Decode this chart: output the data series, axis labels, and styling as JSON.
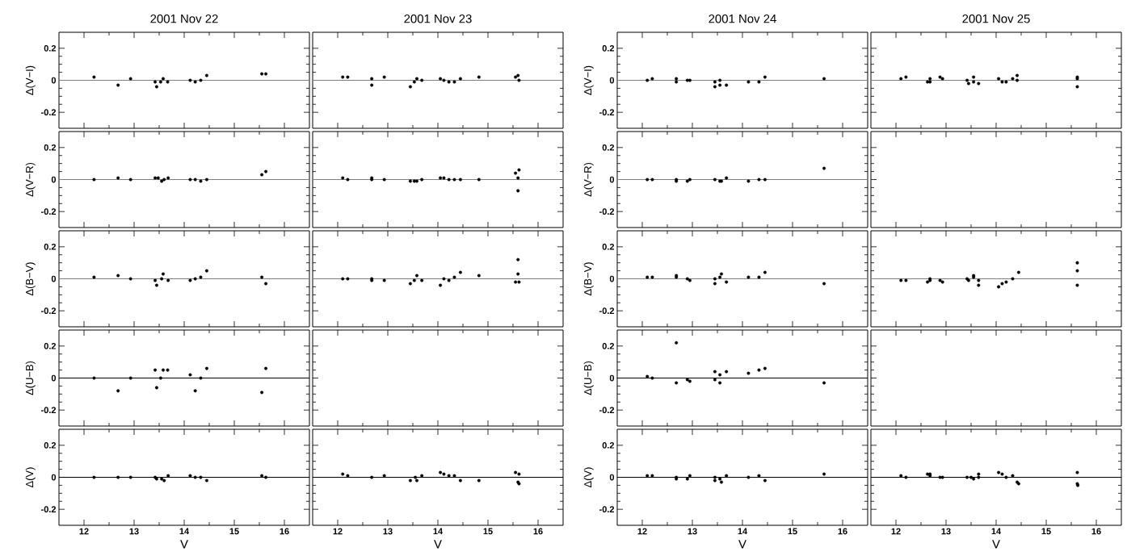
{
  "chart_data": [
    {
      "type": "scatter",
      "title": "2001 Nov 22",
      "ylabel": "Δ(V−I)",
      "x": [
        12.2,
        12.68,
        12.93,
        13.42,
        13.45,
        13.53,
        13.58,
        13.67,
        14.12,
        14.22,
        14.33,
        14.45,
        15.55,
        15.63
      ],
      "values": [
        0.02,
        -0.03,
        0.01,
        -0.01,
        -0.04,
        -0.01,
        0.01,
        -0.01,
        0,
        -0.01,
        0,
        0.03,
        0.04,
        0.04
      ],
      "color": "#000000",
      "marker": "circle",
      "xlim": [
        11.5,
        16.5
      ],
      "ylim": [
        -0.3,
        0.3
      ],
      "xticks": [
        12,
        13,
        14,
        15,
        16
      ],
      "yticks": [
        -0.2,
        0,
        0.2
      ],
      "ref_lines": [
        {
          "axis": "y",
          "value": 0,
          "color": "#808080"
        }
      ],
      "tick_labels": "y"
    },
    {
      "type": "scatter",
      "title": "2001 Nov 23",
      "x": [
        12.1,
        12.2,
        12.68,
        12.68,
        12.93,
        13.45,
        13.53,
        13.58,
        13.68,
        14.05,
        14.12,
        14.22,
        14.33,
        14.45,
        14.82,
        15.55,
        15.6,
        15.62
      ],
      "values": [
        0.02,
        0.02,
        0.01,
        -0.03,
        0.02,
        -0.04,
        -0.01,
        0.01,
        0,
        0.01,
        0,
        -0.01,
        -0.01,
        0.01,
        0.02,
        0.02,
        0.03,
        0
      ],
      "color": "#000000",
      "marker": "circle",
      "xlim": [
        11.5,
        16.5
      ],
      "ylim": [
        -0.3,
        0.3
      ],
      "xticks": [
        12,
        13,
        14,
        15,
        16
      ],
      "yticks": [
        -0.2,
        0,
        0.2
      ],
      "ref_lines": [
        {
          "axis": "y",
          "value": 0,
          "color": "#808080"
        }
      ],
      "tick_labels": false
    },
    {
      "type": "scatter",
      "title": "2001 Nov 24",
      "ylabel": "Δ(V−I)",
      "x": [
        12.1,
        12.2,
        12.68,
        12.68,
        12.9,
        12.95,
        13.45,
        13.45,
        13.55,
        13.55,
        13.68,
        14.12,
        14.33,
        14.45,
        15.63
      ],
      "values": [
        0,
        0.01,
        0.01,
        -0.01,
        0,
        0,
        -0.01,
        -0.04,
        0,
        -0.03,
        -0.03,
        -0.01,
        -0.01,
        0.02,
        0.01
      ],
      "color": "#000000",
      "marker": "circle",
      "xlim": [
        11.5,
        16.5
      ],
      "ylim": [
        -0.3,
        0.3
      ],
      "xticks": [
        12,
        13,
        14,
        15,
        16
      ],
      "yticks": [
        -0.2,
        0,
        0.2
      ],
      "ref_lines": [
        {
          "axis": "y",
          "value": 0,
          "color": "#808080"
        }
      ],
      "tick_labels": "y"
    },
    {
      "type": "scatter",
      "title": "2001 Nov 25",
      "x": [
        12.1,
        12.2,
        12.63,
        12.68,
        12.68,
        12.88,
        12.93,
        13.42,
        13.45,
        13.55,
        13.55,
        13.65,
        14.05,
        14.12,
        14.2,
        14.33,
        14.42,
        14.42,
        15.62,
        15.62,
        15.62
      ],
      "values": [
        0.01,
        0.02,
        -0.01,
        0.01,
        -0.01,
        0.02,
        0.01,
        0,
        -0.02,
        0.02,
        -0.01,
        -0.02,
        0.01,
        -0.01,
        -0.01,
        0.01,
        0.03,
        0,
        0.02,
        0.01,
        -0.04
      ],
      "color": "#000000",
      "marker": "circle",
      "xlim": [
        11.5,
        16.5
      ],
      "ylim": [
        -0.3,
        0.3
      ],
      "xticks": [
        12,
        13,
        14,
        15,
        16
      ],
      "yticks": [
        -0.2,
        0,
        0.2
      ],
      "ref_lines": [
        {
          "axis": "y",
          "value": 0,
          "color": "#808080"
        }
      ],
      "tick_labels": false
    },
    {
      "type": "scatter",
      "ylabel": "Δ(V−R)",
      "x": [
        12.2,
        12.68,
        12.93,
        13.42,
        13.48,
        13.55,
        13.6,
        13.68,
        14.12,
        14.22,
        14.33,
        14.45,
        15.55,
        15.63
      ],
      "values": [
        0,
        0.01,
        0,
        0.01,
        0.01,
        -0.01,
        0,
        0.01,
        0,
        0,
        -0.01,
        0,
        0.03,
        0.05
      ],
      "color": "#000000",
      "marker": "circle",
      "xlim": [
        11.5,
        16.5
      ],
      "ylim": [
        -0.3,
        0.3
      ],
      "xticks": [
        12,
        13,
        14,
        15,
        16
      ],
      "yticks": [
        -0.2,
        0,
        0.2
      ],
      "ref_lines": [
        {
          "axis": "y",
          "value": 0,
          "color": "#808080"
        }
      ],
      "tick_labels": "y"
    },
    {
      "type": "scatter",
      "x": [
        12.1,
        12.2,
        12.68,
        12.68,
        12.93,
        13.45,
        13.53,
        13.58,
        13.68,
        14.05,
        14.12,
        14.22,
        14.33,
        14.45,
        14.82,
        15.55,
        15.62,
        15.6,
        15.6
      ],
      "values": [
        0.01,
        0,
        0,
        0.01,
        0,
        -0.01,
        -0.01,
        -0.01,
        0,
        0.01,
        0.01,
        0,
        0,
        0,
        0,
        0.04,
        0.06,
        0.01,
        -0.07
      ],
      "color": "#000000",
      "marker": "circle",
      "xlim": [
        11.5,
        16.5
      ],
      "ylim": [
        -0.3,
        0.3
      ],
      "xticks": [
        12,
        13,
        14,
        15,
        16
      ],
      "yticks": [
        -0.2,
        0,
        0.2
      ],
      "ref_lines": [
        {
          "axis": "y",
          "value": 0,
          "color": "#808080"
        }
      ],
      "tick_labels": false
    },
    {
      "type": "scatter",
      "ylabel": "Δ(V−R)",
      "x": [
        12.1,
        12.2,
        12.68,
        12.68,
        12.9,
        12.95,
        13.45,
        13.55,
        13.58,
        13.68,
        14.12,
        14.33,
        14.45,
        15.63
      ],
      "values": [
        0,
        0,
        -0.01,
        0,
        -0.01,
        0,
        0,
        -0.01,
        -0.01,
        0.01,
        -0.01,
        0,
        0,
        0.07
      ],
      "color": "#000000",
      "marker": "circle",
      "xlim": [
        11.5,
        16.5
      ],
      "ylim": [
        -0.3,
        0.3
      ],
      "xticks": [
        12,
        13,
        14,
        15,
        16
      ],
      "yticks": [
        -0.2,
        0,
        0.2
      ],
      "ref_lines": [
        {
          "axis": "y",
          "value": 0,
          "color": "#808080"
        }
      ],
      "tick_labels": "y"
    },
    {
      "type": "scatter",
      "ylabel": "Δ(B−V)",
      "x": [
        12.2,
        12.68,
        12.93,
        13.42,
        13.45,
        13.55,
        13.58,
        13.68,
        14.12,
        14.22,
        14.33,
        14.45,
        15.55,
        15.63
      ],
      "values": [
        0.01,
        0.02,
        0,
        -0.01,
        -0.04,
        0,
        0.03,
        -0.01,
        -0.01,
        0,
        0.01,
        0.05,
        0.01,
        -0.03
      ],
      "color": "#000000",
      "marker": "circle",
      "xlim": [
        11.5,
        16.5
      ],
      "ylim": [
        -0.3,
        0.3
      ],
      "xticks": [
        12,
        13,
        14,
        15,
        16
      ],
      "yticks": [
        -0.2,
        0,
        0.2
      ],
      "ref_lines": [
        {
          "axis": "y",
          "value": 0,
          "color": "#808080"
        }
      ],
      "tick_labels": "y"
    },
    {
      "type": "scatter",
      "x": [
        12.1,
        12.2,
        12.68,
        12.68,
        12.93,
        13.45,
        13.53,
        13.58,
        13.68,
        14.05,
        14.12,
        14.22,
        14.33,
        14.45,
        14.82,
        15.55,
        15.62,
        15.6,
        15.6
      ],
      "values": [
        0,
        0,
        0,
        -0.01,
        -0.01,
        -0.03,
        -0.01,
        0.02,
        -0.01,
        -0.04,
        0,
        -0.01,
        0.01,
        0.04,
        0.02,
        -0.02,
        -0.02,
        0.03,
        0.12
      ],
      "color": "#000000",
      "marker": "circle",
      "xlim": [
        11.5,
        16.5
      ],
      "ylim": [
        -0.3,
        0.3
      ],
      "xticks": [
        12,
        13,
        14,
        15,
        16
      ],
      "yticks": [
        -0.2,
        0,
        0.2
      ],
      "ref_lines": [
        {
          "axis": "y",
          "value": 0,
          "color": "#808080"
        }
      ],
      "tick_labels": false
    },
    {
      "type": "scatter",
      "ylabel": "Δ(B−V)",
      "x": [
        12.1,
        12.2,
        12.68,
        12.68,
        12.9,
        12.95,
        13.45,
        13.45,
        13.55,
        13.58,
        13.68,
        14.12,
        14.33,
        14.45,
        15.63
      ],
      "values": [
        0.01,
        0.01,
        0.02,
        0.01,
        0,
        -0.01,
        -0.03,
        0,
        0.01,
        0.03,
        -0.02,
        0.01,
        0.01,
        0.04,
        -0.03
      ],
      "color": "#000000",
      "marker": "circle",
      "xlim": [
        11.5,
        16.5
      ],
      "ylim": [
        -0.3,
        0.3
      ],
      "xticks": [
        12,
        13,
        14,
        15,
        16
      ],
      "yticks": [
        -0.2,
        0,
        0.2
      ],
      "ref_lines": [
        {
          "axis": "y",
          "value": 0,
          "color": "#808080"
        }
      ],
      "tick_labels": "y"
    },
    {
      "type": "scatter",
      "x": [
        12.1,
        12.2,
        12.63,
        12.68,
        12.68,
        12.88,
        12.93,
        13.42,
        13.45,
        13.55,
        13.55,
        13.65,
        13.65,
        14.05,
        14.12,
        14.2,
        14.33,
        14.45,
        15.62,
        15.62,
        15.62
      ],
      "values": [
        -0.01,
        -0.01,
        -0.02,
        0,
        -0.01,
        -0.01,
        -0.02,
        0,
        -0.01,
        0.02,
        0.01,
        -0.01,
        -0.04,
        -0.05,
        -0.03,
        -0.02,
        0,
        0.04,
        0.1,
        0.05,
        -0.04
      ],
      "color": "#000000",
      "marker": "circle",
      "xlim": [
        11.5,
        16.5
      ],
      "ylim": [
        -0.3,
        0.3
      ],
      "xticks": [
        12,
        13,
        14,
        15,
        16
      ],
      "yticks": [
        -0.2,
        0,
        0.2
      ],
      "ref_lines": [
        {
          "axis": "y",
          "value": 0,
          "color": "#808080"
        }
      ],
      "tick_labels": false
    },
    {
      "type": "scatter",
      "ylabel": "Δ(U−B)",
      "x": [
        12.2,
        12.68,
        12.93,
        13.42,
        13.45,
        13.53,
        13.58,
        13.67,
        14.12,
        14.22,
        14.33,
        14.45,
        15.55,
        15.63
      ],
      "values": [
        0,
        -0.08,
        0,
        0.05,
        -0.06,
        0,
        0.05,
        0.05,
        0.02,
        -0.08,
        0,
        0.06,
        -0.09,
        0.06
      ],
      "color": "#000000",
      "marker": "circle",
      "xlim": [
        11.5,
        16.5
      ],
      "ylim": [
        -0.3,
        0.3
      ],
      "xticks": [
        12,
        13,
        14,
        15,
        16
      ],
      "yticks": [
        -0.2,
        0,
        0.2
      ],
      "ref_lines": [
        {
          "axis": "y",
          "value": 0,
          "color": "#000000"
        }
      ],
      "tick_labels": "y"
    },
    {
      "type": "scatter",
      "ylabel": "Δ(U−B)",
      "x": [
        12.1,
        12.2,
        12.68,
        12.68,
        12.9,
        12.95,
        13.45,
        13.45,
        13.55,
        13.55,
        13.68,
        14.12,
        14.33,
        14.45,
        15.63
      ],
      "values": [
        0.01,
        0,
        0.22,
        -0.03,
        -0.01,
        -0.02,
        0.04,
        -0.01,
        0.02,
        -0.03,
        0.04,
        0.03,
        0.05,
        0.06,
        -0.03
      ],
      "color": "#000000",
      "marker": "circle",
      "xlim": [
        11.5,
        16.5
      ],
      "ylim": [
        -0.3,
        0.3
      ],
      "xticks": [
        12,
        13,
        14,
        15,
        16
      ],
      "yticks": [
        -0.2,
        0,
        0.2
      ],
      "ref_lines": [
        {
          "axis": "y",
          "value": 0,
          "color": "#000000"
        }
      ],
      "tick_labels": "y"
    },
    {
      "type": "scatter",
      "ylabel": "Δ(V)",
      "xlabel": "V",
      "x": [
        12.2,
        12.68,
        12.93,
        13.42,
        13.45,
        13.55,
        13.6,
        13.68,
        14.12,
        14.22,
        14.33,
        14.45,
        15.55,
        15.63
      ],
      "values": [
        0,
        0,
        0,
        0,
        -0.01,
        -0.01,
        -0.02,
        0.01,
        0.01,
        0,
        0,
        -0.02,
        0.01,
        0
      ],
      "color": "#000000",
      "marker": "circle",
      "xlim": [
        11.5,
        16.5
      ],
      "ylim": [
        -0.3,
        0.3
      ],
      "xticks": [
        12,
        13,
        14,
        15,
        16
      ],
      "yticks": [
        -0.2,
        0,
        0.2
      ],
      "ref_lines": [
        {
          "axis": "y",
          "value": 0,
          "color": "#000000"
        }
      ]
    },
    {
      "type": "scatter",
      "xlabel": "V",
      "x": [
        12.1,
        12.2,
        12.68,
        12.93,
        13.45,
        13.55,
        13.58,
        13.68,
        14.05,
        14.12,
        14.22,
        14.33,
        14.45,
        14.82,
        15.55,
        15.62,
        15.6,
        15.62
      ],
      "values": [
        0.02,
        0.01,
        0,
        0.01,
        -0.02,
        0,
        -0.02,
        0.01,
        0.03,
        0.02,
        0.01,
        0.01,
        -0.02,
        -0.02,
        0.03,
        0.02,
        -0.03,
        -0.04
      ],
      "color": "#000000",
      "marker": "circle",
      "xlim": [
        11.5,
        16.5
      ],
      "ylim": [
        -0.3,
        0.3
      ],
      "xticks": [
        12,
        13,
        14,
        15,
        16
      ],
      "yticks": [
        -0.2,
        0,
        0.2
      ],
      "ref_lines": [
        {
          "axis": "y",
          "value": 0,
          "color": "#000000"
        }
      ],
      "tick_labels": "x"
    },
    {
      "type": "scatter",
      "ylabel": "Δ(V)",
      "xlabel": "V",
      "x": [
        12.1,
        12.2,
        12.68,
        12.68,
        12.9,
        12.95,
        13.45,
        13.45,
        13.55,
        13.58,
        13.68,
        14.12,
        14.33,
        14.45,
        15.63
      ],
      "values": [
        0.01,
        0.01,
        -0.01,
        0,
        -0.01,
        0.01,
        0,
        -0.02,
        -0.01,
        -0.03,
        0.01,
        0,
        0.01,
        -0.02,
        0.02
      ],
      "color": "#000000",
      "marker": "circle",
      "xlim": [
        11.5,
        16.5
      ],
      "ylim": [
        -0.3,
        0.3
      ],
      "xticks": [
        12,
        13,
        14,
        15,
        16
      ],
      "yticks": [
        -0.2,
        0,
        0.2
      ],
      "ref_lines": [
        {
          "axis": "y",
          "value": 0,
          "color": "#000000"
        }
      ]
    },
    {
      "type": "scatter",
      "xlabel": "V",
      "x": [
        12.1,
        12.2,
        12.63,
        12.68,
        12.68,
        12.88,
        12.93,
        13.42,
        13.5,
        13.55,
        13.65,
        13.65,
        14.05,
        14.12,
        14.2,
        14.33,
        14.42,
        14.45,
        15.62,
        15.62,
        15.63
      ],
      "values": [
        0.01,
        0,
        0.02,
        0.01,
        0.02,
        0,
        0,
        0,
        0,
        -0.01,
        0.02,
        0,
        0.03,
        0.02,
        0,
        0.01,
        -0.03,
        -0.04,
        0.03,
        -0.04,
        -0.05
      ],
      "color": "#000000",
      "marker": "circle",
      "xlim": [
        11.5,
        16.5
      ],
      "ylim": [
        -0.3,
        0.3
      ],
      "xticks": [
        12,
        13,
        14,
        15,
        16
      ],
      "yticks": [
        -0.2,
        0,
        0.2
      ],
      "ref_lines": [
        {
          "axis": "y",
          "value": 0,
          "color": "#000000"
        }
      ],
      "tick_labels": "x"
    }
  ]
}
